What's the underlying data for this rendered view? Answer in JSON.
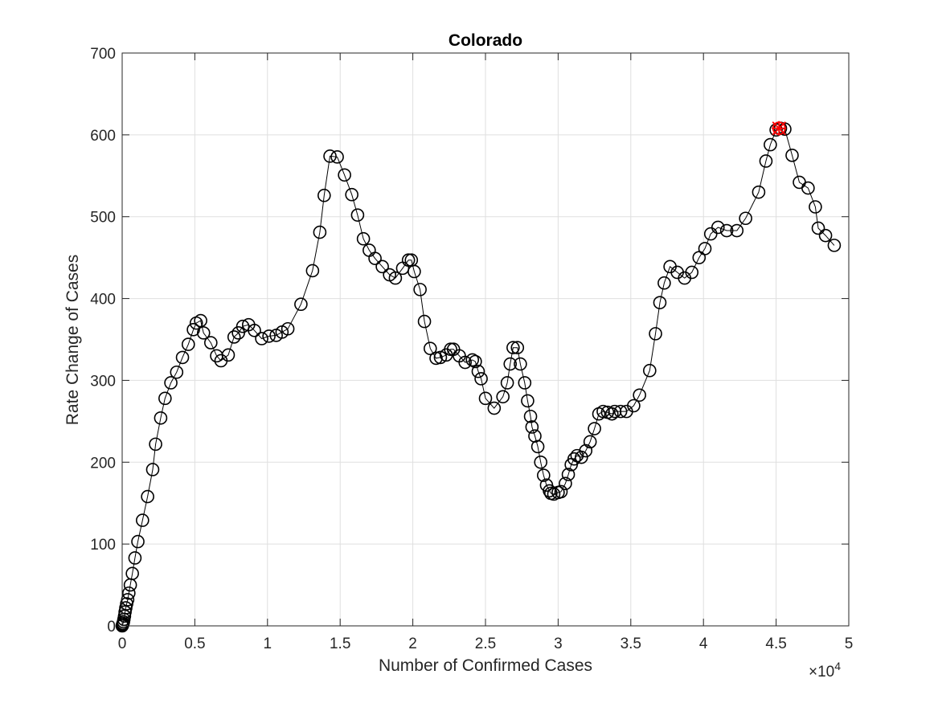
{
  "chart_data": {
    "type": "scatter",
    "title": "Colorado",
    "xlabel": "Number of Confirmed Cases",
    "ylabel": "Rate Change of Cases",
    "xlim": [
      0,
      50000
    ],
    "ylim": [
      0,
      700
    ],
    "xticks": [
      0,
      5000,
      10000,
      15000,
      20000,
      25000,
      30000,
      35000,
      40000,
      45000,
      50000
    ],
    "xtick_labels": [
      "0",
      "0.5",
      "1",
      "1.5",
      "2",
      "2.5",
      "3",
      "3.5",
      "4",
      "4.5",
      "5"
    ],
    "yticks": [
      0,
      100,
      200,
      300,
      400,
      500,
      600,
      700
    ],
    "ytick_labels": [
      "0",
      "100",
      "200",
      "300",
      "400",
      "500",
      "600",
      "700"
    ],
    "x_exponent_base": "×10",
    "x_exponent_power": "4",
    "grid": true,
    "colors": {
      "line": "#000000",
      "marker": "#000000",
      "highlight": "#ff0000",
      "grid": "#dfdfdf",
      "axis": "#262626"
    },
    "series": [
      {
        "marker": "circle",
        "line": true,
        "points": [
          [
            0,
            0
          ],
          [
            20,
            1
          ],
          [
            40,
            2
          ],
          [
            60,
            3
          ],
          [
            90,
            5
          ],
          [
            120,
            8
          ],
          [
            160,
            12
          ],
          [
            200,
            17
          ],
          [
            250,
            22
          ],
          [
            310,
            27
          ],
          [
            380,
            32
          ],
          [
            460,
            40
          ],
          [
            560,
            50
          ],
          [
            700,
            64
          ],
          [
            880,
            83
          ],
          [
            1080,
            103
          ],
          [
            1400,
            129
          ],
          [
            1750,
            158
          ],
          [
            2100,
            191
          ],
          [
            2300,
            222
          ],
          [
            2650,
            254
          ],
          [
            2950,
            278
          ],
          [
            3350,
            297
          ],
          [
            3750,
            310
          ],
          [
            4150,
            328
          ],
          [
            4550,
            344
          ],
          [
            4900,
            362
          ],
          [
            5100,
            370
          ],
          [
            5400,
            373
          ],
          [
            5600,
            358
          ],
          [
            6100,
            346
          ],
          [
            6500,
            330
          ],
          [
            6800,
            324
          ],
          [
            7300,
            331
          ],
          [
            7700,
            353
          ],
          [
            8000,
            358
          ],
          [
            8300,
            366
          ],
          [
            8700,
            368
          ],
          [
            9100,
            361
          ],
          [
            9600,
            351
          ],
          [
            10100,
            354
          ],
          [
            10600,
            355
          ],
          [
            11000,
            359
          ],
          [
            11400,
            363
          ],
          [
            12300,
            393
          ],
          [
            13100,
            434
          ],
          [
            13600,
            481
          ],
          [
            13900,
            526
          ],
          [
            14300,
            574
          ],
          [
            14800,
            573
          ],
          [
            15300,
            551
          ],
          [
            15800,
            527
          ],
          [
            16200,
            502
          ],
          [
            16600,
            473
          ],
          [
            17000,
            459
          ],
          [
            17400,
            449
          ],
          [
            17900,
            439
          ],
          [
            18400,
            429
          ],
          [
            18800,
            425
          ],
          [
            19300,
            437
          ],
          [
            19700,
            447
          ],
          [
            19900,
            447
          ],
          [
            20100,
            433
          ],
          [
            20500,
            411
          ],
          [
            20800,
            372
          ],
          [
            21200,
            339
          ],
          [
            21600,
            327
          ],
          [
            21900,
            328
          ],
          [
            22300,
            331
          ],
          [
            22600,
            338
          ],
          [
            22800,
            338
          ],
          [
            23200,
            330
          ],
          [
            23600,
            322
          ],
          [
            24100,
            325
          ],
          [
            24300,
            323
          ],
          [
            24500,
            311
          ],
          [
            24700,
            302
          ],
          [
            25000,
            278
          ],
          [
            25600,
            266
          ],
          [
            26200,
            280
          ],
          [
            26500,
            297
          ],
          [
            26700,
            320
          ],
          [
            26900,
            340
          ],
          [
            27200,
            340
          ],
          [
            27400,
            320
          ],
          [
            27700,
            297
          ],
          [
            27900,
            275
          ],
          [
            28100,
            256
          ],
          [
            28200,
            243
          ],
          [
            28400,
            232
          ],
          [
            28600,
            219
          ],
          [
            28800,
            200
          ],
          [
            29000,
            184
          ],
          [
            29200,
            172
          ],
          [
            29400,
            165
          ],
          [
            29500,
            162
          ],
          [
            29700,
            161
          ],
          [
            30000,
            163
          ],
          [
            30200,
            164
          ],
          [
            30500,
            174
          ],
          [
            30700,
            185
          ],
          [
            30900,
            197
          ],
          [
            31100,
            204
          ],
          [
            31300,
            208
          ],
          [
            31600,
            206
          ],
          [
            31900,
            214
          ],
          [
            32200,
            225
          ],
          [
            32500,
            241
          ],
          [
            32800,
            259
          ],
          [
            33100,
            262
          ],
          [
            33400,
            261
          ],
          [
            33700,
            259
          ],
          [
            33900,
            262
          ],
          [
            34300,
            262
          ],
          [
            34700,
            262
          ],
          [
            35200,
            269
          ],
          [
            35600,
            282
          ],
          [
            36300,
            312
          ],
          [
            36700,
            357
          ],
          [
            37000,
            395
          ],
          [
            37300,
            419
          ],
          [
            37700,
            439
          ],
          [
            38200,
            432
          ],
          [
            38700,
            425
          ],
          [
            39200,
            432
          ],
          [
            39700,
            450
          ],
          [
            40100,
            461
          ],
          [
            40500,
            479
          ],
          [
            41000,
            487
          ],
          [
            41600,
            483
          ],
          [
            42300,
            483
          ],
          [
            42900,
            498
          ],
          [
            43800,
            530
          ],
          [
            44300,
            568
          ],
          [
            44600,
            588
          ],
          [
            45000,
            606
          ],
          [
            45300,
            608
          ],
          [
            45600,
            607
          ],
          [
            46100,
            575
          ],
          [
            46600,
            542
          ],
          [
            47200,
            535
          ],
          [
            47700,
            512
          ],
          [
            47900,
            486
          ],
          [
            48400,
            477
          ],
          [
            49000,
            465
          ]
        ]
      }
    ],
    "highlight_points": [
      [
        45200,
        608
      ]
    ]
  }
}
